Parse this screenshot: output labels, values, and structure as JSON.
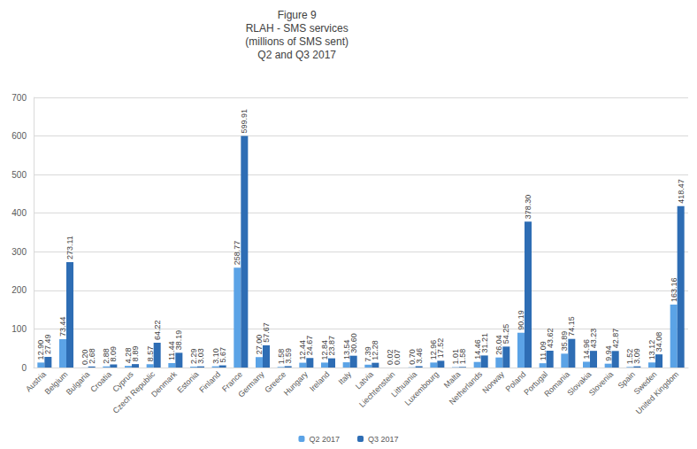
{
  "chart_data": {
    "type": "bar",
    "title": "Figure 9\nRLAH - SMS services\n(millions of SMS sent)\nQ2 and Q3 2017",
    "categories": [
      "Austria",
      "Belgium",
      "Bulgaria",
      "Croatia",
      "Cyprus",
      "Czech Republic",
      "Denmark",
      "Estonia",
      "Finland",
      "France",
      "Germany",
      "Greece",
      "Hungary",
      "Ireland",
      "Italy",
      "Latvia",
      "Liechtenstein",
      "Lithuania",
      "Luxembourg",
      "Malta",
      "Netherlands",
      "Norway",
      "Poland",
      "Portugal",
      "Romania",
      "Slovakia",
      "Slovenia",
      "Spain",
      "Sweden",
      "United Kingdom"
    ],
    "series": [
      {
        "name": "Q2 2017",
        "color": "#5ba3e6",
        "values": [
          12.9,
          73.44,
          0.2,
          2.88,
          4.28,
          8.57,
          11.44,
          2.29,
          3.1,
          258.77,
          27.0,
          1.58,
          12.44,
          12.84,
          13.54,
          7.39,
          0.02,
          0.7,
          12.96,
          1.01,
          14.46,
          26.04,
          90.19,
          11.09,
          35.89,
          14.96,
          9.94,
          1.52,
          13.12,
          163.16
        ],
        "value_labels": [
          "12.90",
          "73.44",
          "0.20",
          "2.88",
          "4.28",
          "8.57",
          "11.44",
          "2.29",
          "3.10",
          "258.77",
          "27.00",
          "1.58",
          "12.44",
          "12.84",
          "13.54",
          "7.39",
          "0.02",
          "0.70",
          "12.96",
          "1.01",
          "14.46",
          "26.04",
          "90.19",
          "11.09",
          "35.89",
          "14.96",
          "9.94",
          "1.52",
          "13.12",
          "163.16"
        ]
      },
      {
        "name": "Q3 2017",
        "color": "#2e6db4",
        "values": [
          27.49,
          273.11,
          2.68,
          8.09,
          8.89,
          64.22,
          38.19,
          3.03,
          5.67,
          599.91,
          57.67,
          3.59,
          24.67,
          23.87,
          30.6,
          12.28,
          0.07,
          3.46,
          17.52,
          1.58,
          31.21,
          54.25,
          378.3,
          43.62,
          74.15,
          43.23,
          42.87,
          3.09,
          34.08,
          418.47
        ],
        "value_labels": [
          "27.49",
          "273.11",
          "2.68",
          "8.09",
          "8.89",
          "64.22",
          "38.19",
          "3.03",
          "5.67",
          "599.91",
          "57.67",
          "3.59",
          "24.67",
          "23.87",
          "30.60",
          "12.28",
          "0.07",
          "3.46",
          "17.52",
          "1.58",
          "31.21",
          "54.25",
          "378.30",
          "43.62",
          "74.15",
          "43.23",
          "42.87",
          "3.09",
          "34.08",
          "418.47"
        ]
      }
    ],
    "ylim": [
      0,
      700
    ],
    "yticks": [
      0,
      100,
      200,
      300,
      400,
      500,
      600,
      700
    ],
    "grid": true,
    "legend": "bottom",
    "data_labels": true
  }
}
